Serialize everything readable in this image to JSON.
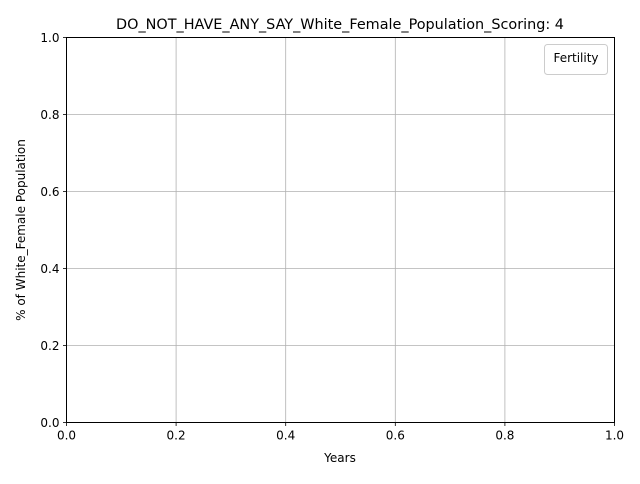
{
  "chart_data": {
    "type": "line",
    "title": "DO_NOT_HAVE_ANY_SAY_White_Female_Population_Scoring: 4",
    "xlabel": "Years",
    "ylabel": "% of White_Female Population",
    "xlim": [
      0,
      1
    ],
    "ylim": [
      0,
      1
    ],
    "xticks": [
      "0.0",
      "0.2",
      "0.4",
      "0.6",
      "0.8",
      "1.0"
    ],
    "yticks": [
      "0.0",
      "0.2",
      "0.4",
      "0.6",
      "0.8",
      "1.0"
    ],
    "grid": true,
    "legend": {
      "title": "Fertility",
      "placement": "top-right",
      "entries": []
    },
    "series": []
  },
  "colors": {
    "grid": "#b0b0b0",
    "axis": "#000000",
    "legend_border": "#cccccc"
  }
}
